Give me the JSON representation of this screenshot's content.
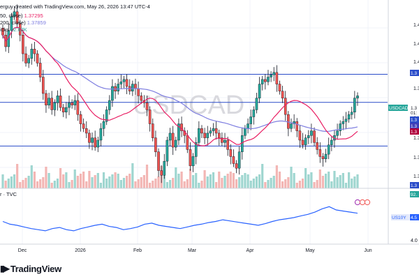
{
  "header": {
    "author_line": "erguy created with TradingView.com, May 26, 2026 13:47 UTC-4",
    "ma50_label": "50, close)",
    "ma50_value": "1.37295",
    "ma200_label": "200, close)",
    "ma200_value": "1.37859",
    "volume_label": "icks",
    "volume_value": "92.67K"
  },
  "colors": {
    "up": "#26a69a",
    "down": "#ef5350",
    "ma50": "#e91e63",
    "ma200": "#7e7ee0",
    "level": "#2a4cc9",
    "vol_up": "#9fd6d0",
    "vol_down": "#f3b6b4",
    "us10y": "#2962ff",
    "price_tag": "#2a4cc9",
    "bg": "#ffffff"
  },
  "watermark": "USDCAD",
  "lower_pane_label": "r · TVC",
  "logo_text": "TradingView",
  "right_tags": [
    {
      "text": "1.3",
      "kind": "level"
    },
    {
      "text": "USDCAD",
      "kind": "symbol"
    },
    {
      "text": "1.3",
      "kind": "price"
    },
    {
      "text": "01:",
      "kind": "time"
    },
    {
      "text": "1.3",
      "kind": "level"
    },
    {
      "text": "1.3",
      "kind": "ma200"
    },
    {
      "text": "1.3",
      "kind": "ma50"
    },
    {
      "text": "1.3",
      "kind": "level"
    },
    {
      "text": "92.",
      "kind": "volume"
    },
    {
      "text": "US10Y",
      "kind": "symbol2"
    },
    {
      "text": "4.5",
      "kind": "value"
    }
  ],
  "chart_data": {
    "type": "candlestick",
    "symbol": "USDCAD",
    "x_ticks": [
      "Dec",
      "2026",
      "Feb",
      "Mar",
      "Apr",
      "May",
      "Jun"
    ],
    "y_ticks_main": [
      "1.4",
      "1.4",
      "1.4",
      "1.3",
      "1.3",
      "1.3",
      "1.3",
      "1.3",
      "1.3"
    ],
    "y_ticks_lower": [
      "4.0"
    ],
    "horizontal_levels": [
      1.3932,
      1.3812,
      1.3625
    ],
    "series": [
      {
        "name": "USDCAD",
        "kind": "ohlc",
        "close": [
          1.41,
          1.405,
          1.412,
          1.418,
          1.42,
          1.415,
          1.41,
          1.402,
          1.398,
          1.4,
          1.404,
          1.402,
          1.398,
          1.392,
          1.385,
          1.38,
          1.383,
          1.378,
          1.381,
          1.384,
          1.379,
          1.377,
          1.379,
          1.381,
          1.38,
          1.382,
          1.376,
          1.372,
          1.37,
          1.368,
          1.364,
          1.366,
          1.362,
          1.365,
          1.37,
          1.373,
          1.378,
          1.382,
          1.388,
          1.386,
          1.389,
          1.39,
          1.391,
          1.388,
          1.386,
          1.389,
          1.387,
          1.384,
          1.382,
          1.381,
          1.378,
          1.372,
          1.366,
          1.36,
          1.352,
          1.35,
          1.356,
          1.365,
          1.368,
          1.362,
          1.365,
          1.372,
          1.369,
          1.367,
          1.361,
          1.354,
          1.358,
          1.364,
          1.37,
          1.368,
          1.366,
          1.368,
          1.369,
          1.37,
          1.368,
          1.366,
          1.364,
          1.365,
          1.361,
          1.358,
          1.355,
          1.353,
          1.36,
          1.367,
          1.37,
          1.372,
          1.375,
          1.378,
          1.383,
          1.389,
          1.391,
          1.39,
          1.392,
          1.393,
          1.394,
          1.389,
          1.386,
          1.383,
          1.376,
          1.37,
          1.372,
          1.373,
          1.369,
          1.365,
          1.363,
          1.366,
          1.367,
          1.369,
          1.364,
          1.361,
          1.358,
          1.357,
          1.359,
          1.363,
          1.365,
          1.367,
          1.369,
          1.372,
          1.373,
          1.374,
          1.376,
          1.377,
          1.383,
          1.384
        ]
      },
      {
        "name": "MA 50",
        "value": 1.37295
      },
      {
        "name": "MA 200",
        "value": 1.37859
      },
      {
        "name": "Volume",
        "last": "92.67K"
      },
      {
        "name": "US10Y",
        "values": [
          4.35,
          4.3,
          4.28,
          4.25,
          4.22,
          4.2,
          4.18,
          4.22,
          4.24,
          4.2,
          4.18,
          4.22,
          4.25,
          4.28,
          4.3,
          4.26,
          4.24,
          4.2,
          4.22,
          4.25,
          4.3,
          4.32,
          4.28,
          4.26,
          4.24,
          4.22,
          4.25,
          4.28,
          4.3,
          4.33,
          4.35,
          4.38,
          4.36,
          4.34,
          4.32,
          4.3,
          4.28,
          4.31,
          4.35,
          4.38,
          4.4,
          4.42,
          4.45,
          4.48,
          4.52,
          4.58,
          4.62,
          4.56,
          4.54,
          4.52,
          4.5
        ]
      }
    ]
  }
}
